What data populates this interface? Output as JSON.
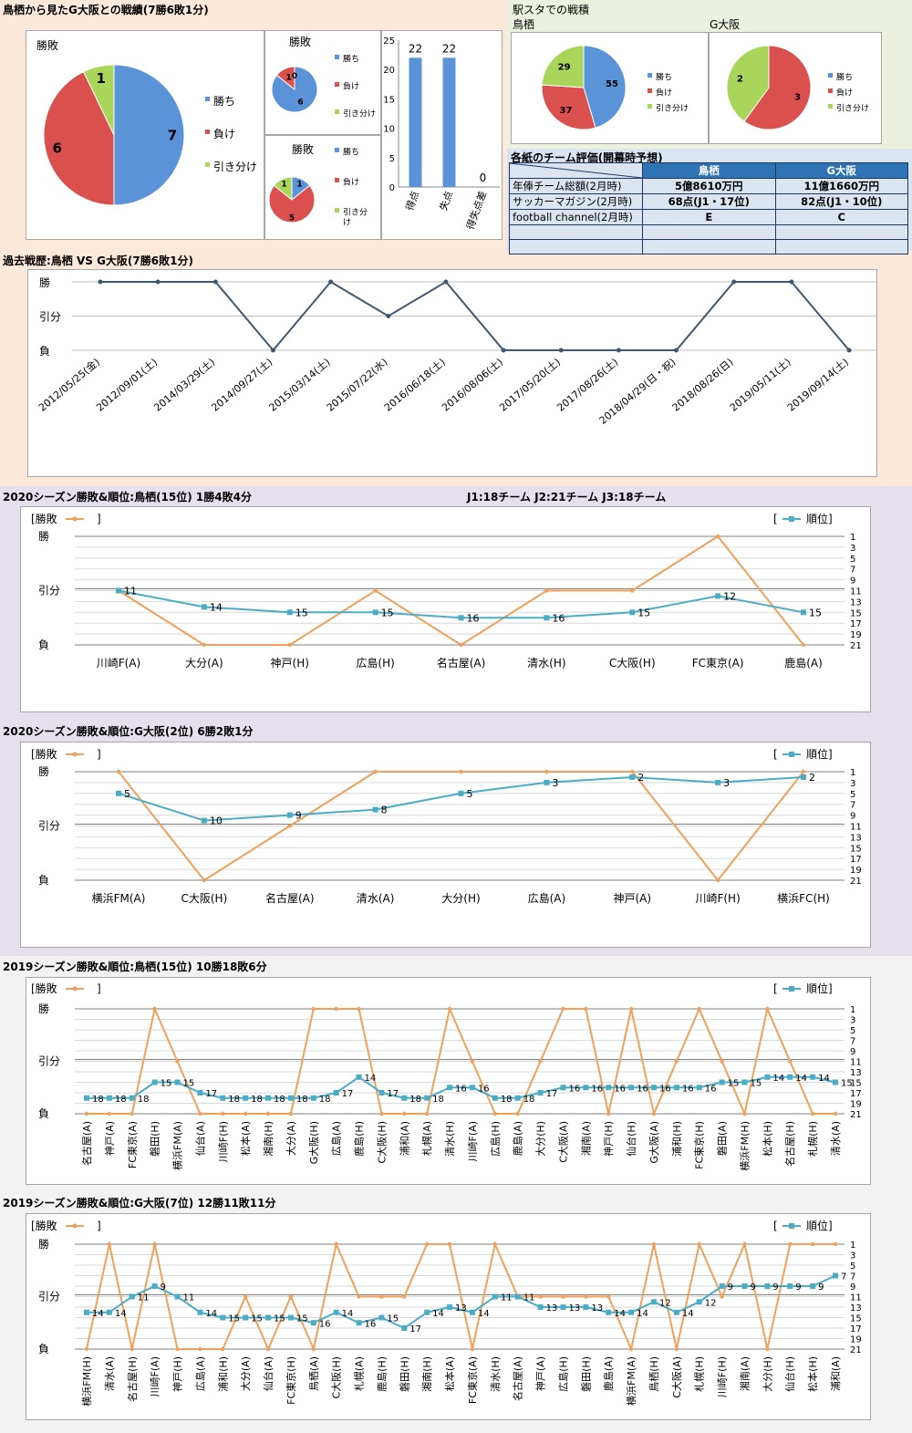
{
  "colors": {
    "win": "#5b93d9",
    "loss": "#d9504e",
    "draw": "#a9d55b",
    "line": "#41576e",
    "orange": "#f0a05a",
    "teal": "#4bacc6",
    "bar": "#5b93d9",
    "bg1": "#fde9d9",
    "bg2": "#e5e0ec",
    "bg3": "#f2f2f2"
  },
  "headers": {
    "h2h_title": "鳥栖から見たG大阪との戦績(7勝6敗1分)",
    "stadium_title": "駅スタでの戦積",
    "stadium_tosu": "鳥栖",
    "stadium_gosaka": "G大阪",
    "eval_title": "各紙のチーム評価(開幕時予想)",
    "history_title": "過去戦歴:鳥栖 VS G大阪(7勝6敗1分)",
    "c2020t_title": "2020シーズン勝敗&順位:鳥栖(15位) 1勝4敗4分",
    "league_note": "J1:18チーム J2:21チーム J3:18チーム",
    "c2020g_title": "2020シーズン勝敗&順位:G大阪(2位) 6勝2敗1分",
    "c2019t_title": "2019シーズン勝敗&順位:鳥栖(15位) 10勝18敗6分",
    "c2019g_title": "2019シーズン勝敗&順位:G大阪(7位) 12勝11敗11分"
  },
  "pie_labels": {
    "title": "勝敗",
    "win": "勝ち",
    "loss": "負け",
    "draw": "引き分け"
  },
  "result_axis": [
    "勝",
    "引分",
    "負"
  ],
  "legend": {
    "result": "[勝敗",
    "result_close": "]",
    "rank_open": "[",
    "rank": "順位]"
  },
  "evaluation": {
    "col_tosu": "鳥栖",
    "col_gosaka": "G大阪",
    "rows": [
      {
        "label": "年俸チーム総額(2月時)",
        "tosu": "5億8610万円",
        "gosaka": "11億1660万円"
      },
      {
        "label": "サッカーマガジン(2月時)",
        "tosu": "68点(J1・17位)",
        "gosaka": "82点(J1・10位)"
      },
      {
        "label": "football channel(2月時)",
        "tosu": "E",
        "gosaka": "C"
      },
      {
        "label": "",
        "tosu": "",
        "gosaka": ""
      },
      {
        "label": "",
        "tosu": "",
        "gosaka": ""
      }
    ]
  },
  "chart_data": [
    {
      "id": "pie_overall",
      "type": "pie",
      "title": "勝敗",
      "categories": [
        "勝ち",
        "負け",
        "引き分け"
      ],
      "values": [
        7,
        6,
        1
      ]
    },
    {
      "id": "pie_home",
      "type": "pie",
      "title": "勝敗",
      "categories": [
        "勝ち",
        "負け",
        "引き分け"
      ],
      "values": [
        6,
        1,
        0
      ]
    },
    {
      "id": "pie_away",
      "type": "pie",
      "title": "勝敗",
      "categories": [
        "勝ち",
        "負け",
        "引き分け"
      ],
      "values": [
        1,
        5,
        1
      ]
    },
    {
      "id": "goals_bar",
      "type": "bar",
      "categories": [
        "得点",
        "失点",
        "得失点差"
      ],
      "values": [
        22,
        22,
        0
      ],
      "ylim": [
        0,
        25
      ],
      "yticks": [
        0,
        5,
        10,
        15,
        20,
        25
      ]
    },
    {
      "id": "pie_stadium_tosu",
      "type": "pie",
      "categories": [
        "勝ち",
        "負け",
        "引き分け"
      ],
      "values": [
        55,
        37,
        29
      ]
    },
    {
      "id": "pie_stadium_gosaka",
      "type": "pie",
      "categories": [
        "勝ち",
        "負け",
        "引き分け"
      ],
      "values": [
        0,
        3,
        2
      ]
    },
    {
      "id": "history",
      "type": "line",
      "categories": [
        "2012/05/25(金)",
        "2012/09/01(土)",
        "2014/03/29(土)",
        "2014/09/27(土)",
        "2015/03/14(土)",
        "2015/07/22(水)",
        "2016/06/18(土)",
        "2016/08/06(土)",
        "2017/05/20(土)",
        "2017/08/26(土)",
        "2018/04/29(日・祝)",
        "2018/08/26(日)",
        "2019/05/11(土)",
        "2019/09/14(土)"
      ],
      "values": [
        1,
        1,
        1,
        -1,
        1,
        0,
        1,
        -1,
        -1,
        -1,
        -1,
        1,
        1,
        -1
      ],
      "ylabels": [
        "勝",
        "引分",
        "負"
      ]
    },
    {
      "id": "season2020_tosu",
      "type": "line",
      "categories": [
        "川崎F(A)",
        "大分(A)",
        "神戸(H)",
        "広島(H)",
        "名古屋(A)",
        "清水(H)",
        "C大阪(H)",
        "FC東京(A)",
        "鹿島(A)"
      ],
      "series": [
        {
          "name": "勝敗",
          "values": [
            0,
            -1,
            -1,
            0,
            -1,
            0,
            0,
            1,
            -1
          ]
        },
        {
          "name": "順位",
          "values": [
            11,
            14,
            15,
            15,
            16,
            16,
            15,
            12,
            15
          ]
        }
      ],
      "rank_ticks": [
        1,
        3,
        5,
        7,
        9,
        11,
        13,
        15,
        17,
        19,
        21
      ]
    },
    {
      "id": "season2020_gosaka",
      "type": "line",
      "categories": [
        "横浜FM(A)",
        "C大阪(H)",
        "名古屋(A)",
        "清水(A)",
        "大分(H)",
        "広島(A)",
        "神戸(A)",
        "川崎F(H)",
        "横浜FC(H)"
      ],
      "series": [
        {
          "name": "勝敗",
          "values": [
            1,
            -1,
            0,
            1,
            1,
            1,
            1,
            -1,
            1
          ]
        },
        {
          "name": "順位",
          "values": [
            5,
            10,
            9,
            8,
            5,
            3,
            2,
            3,
            2
          ]
        }
      ],
      "rank_ticks": [
        1,
        3,
        5,
        7,
        9,
        11,
        13,
        15,
        17,
        19,
        21
      ]
    },
    {
      "id": "season2019_tosu",
      "type": "line",
      "categories": [
        "名古屋(A)",
        "神戸(A)",
        "FC東京(A)",
        "磐田(H)",
        "横浜FM(A)",
        "仙台(A)",
        "川崎F(H)",
        "松本(A)",
        "湘南(H)",
        "大分(A)",
        "G大阪(H)",
        "広島(A)",
        "鹿島(H)",
        "C大阪(H)",
        "浦和(A)",
        "札幌(A)",
        "清水(H)",
        "川崎F(A)",
        "広島(H)",
        "鹿島(A)",
        "大分(H)",
        "C大阪(A)",
        "湘南(A)",
        "神戸(H)",
        "仙台(H)",
        "G大阪(A)",
        "浦和(H)",
        "FC東京(H)",
        "磐田(A)",
        "横浜FM(H)",
        "松本(H)",
        "名古屋(H)",
        "札幌(H)",
        "清水(A)"
      ],
      "series": [
        {
          "name": "勝敗",
          "values": [
            -1,
            -1,
            -1,
            1,
            0,
            -1,
            -1,
            -1,
            -1,
            -1,
            1,
            1,
            1,
            -1,
            -1,
            -1,
            1,
            0,
            -1,
            -1,
            0,
            1,
            1,
            -1,
            1,
            -1,
            0,
            1,
            0,
            -1,
            1,
            0,
            -1,
            -1
          ]
        },
        {
          "name": "順位",
          "values": [
            18,
            18,
            18,
            15,
            15,
            17,
            18,
            18,
            18,
            18,
            18,
            17,
            14,
            17,
            18,
            18,
            16,
            16,
            18,
            18,
            17,
            16,
            16,
            16,
            16,
            16,
            16,
            16,
            15,
            15,
            14,
            14,
            14,
            15
          ]
        }
      ],
      "rank_ticks": [
        1,
        3,
        5,
        7,
        9,
        11,
        13,
        15,
        17,
        19,
        21
      ]
    },
    {
      "id": "season2019_gosaka",
      "type": "line",
      "categories": [
        "横浜FM(H)",
        "清水(A)",
        "名古屋(H)",
        "川崎F(A)",
        "神戸(H)",
        "広島(A)",
        "浦和(H)",
        "大分(A)",
        "仙台(A)",
        "FC東京(H)",
        "鳥栖(A)",
        "C大阪(H)",
        "札幌(A)",
        "鹿島(H)",
        "磐田(H)",
        "湘南(H)",
        "松本(A)",
        "FC東京(A)",
        "清水(H)",
        "名古屋(A)",
        "神戸(A)",
        "広島(H)",
        "磐田(H)",
        "鹿島(A)",
        "横浜FM(A)",
        "鳥栖(H)",
        "C大阪(A)",
        "札幌(H)",
        "川崎F(H)",
        "湘南(A)",
        "大分(H)",
        "仙台(H)",
        "松本(H)",
        "浦和(A)"
      ],
      "series": [
        {
          "name": "勝敗",
          "values": [
            -1,
            1,
            -1,
            1,
            -1,
            -1,
            -1,
            0,
            -1,
            0,
            -1,
            1,
            0,
            0,
            0,
            1,
            1,
            -1,
            1,
            0,
            0,
            0,
            0,
            0,
            -1,
            1,
            -1,
            1,
            0,
            1,
            -1,
            1,
            1,
            1
          ]
        },
        {
          "name": "順位",
          "values": [
            14,
            14,
            11,
            9,
            11,
            14,
            15,
            15,
            15,
            15,
            16,
            14,
            16,
            15,
            17,
            14,
            13,
            14,
            11,
            11,
            13,
            13,
            13,
            14,
            14,
            12,
            14,
            12,
            9,
            9,
            9,
            9,
            9,
            7
          ]
        }
      ],
      "rank_ticks": [
        1,
        3,
        5,
        7,
        9,
        11,
        13,
        15,
        17,
        19,
        21
      ]
    }
  ]
}
